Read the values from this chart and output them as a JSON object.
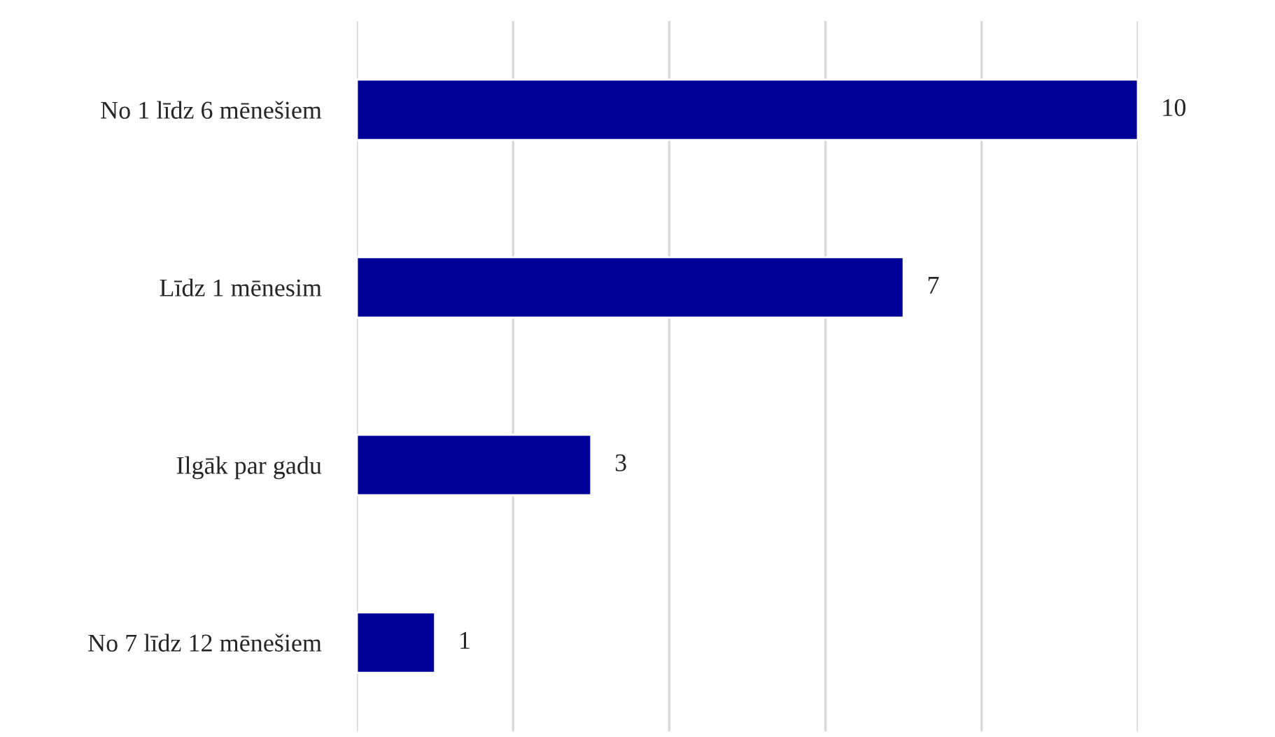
{
  "chart_data": {
    "type": "bar",
    "orientation": "horizontal",
    "categories": [
      "No 1 līdz 6 mēnešiem",
      "Līdz 1 mēnesim",
      "Ilgāk par gadu",
      "No 7 līdz 12 mēnešiem"
    ],
    "values": [
      10,
      7,
      3,
      1
    ],
    "color": "#000099",
    "xlim": [
      0,
      10
    ],
    "xticks": [
      {
        "value": 0,
        "label": null
      },
      {
        "value": 2,
        "label": null
      },
      {
        "value": 4,
        "label": null
      },
      {
        "value": 6,
        "label": null
      },
      {
        "value": 8,
        "label": null
      },
      {
        "value": 10,
        "label": null
      }
    ],
    "tick_labels": "y",
    "grid": "x",
    "data_labels": true,
    "legend": false
  }
}
